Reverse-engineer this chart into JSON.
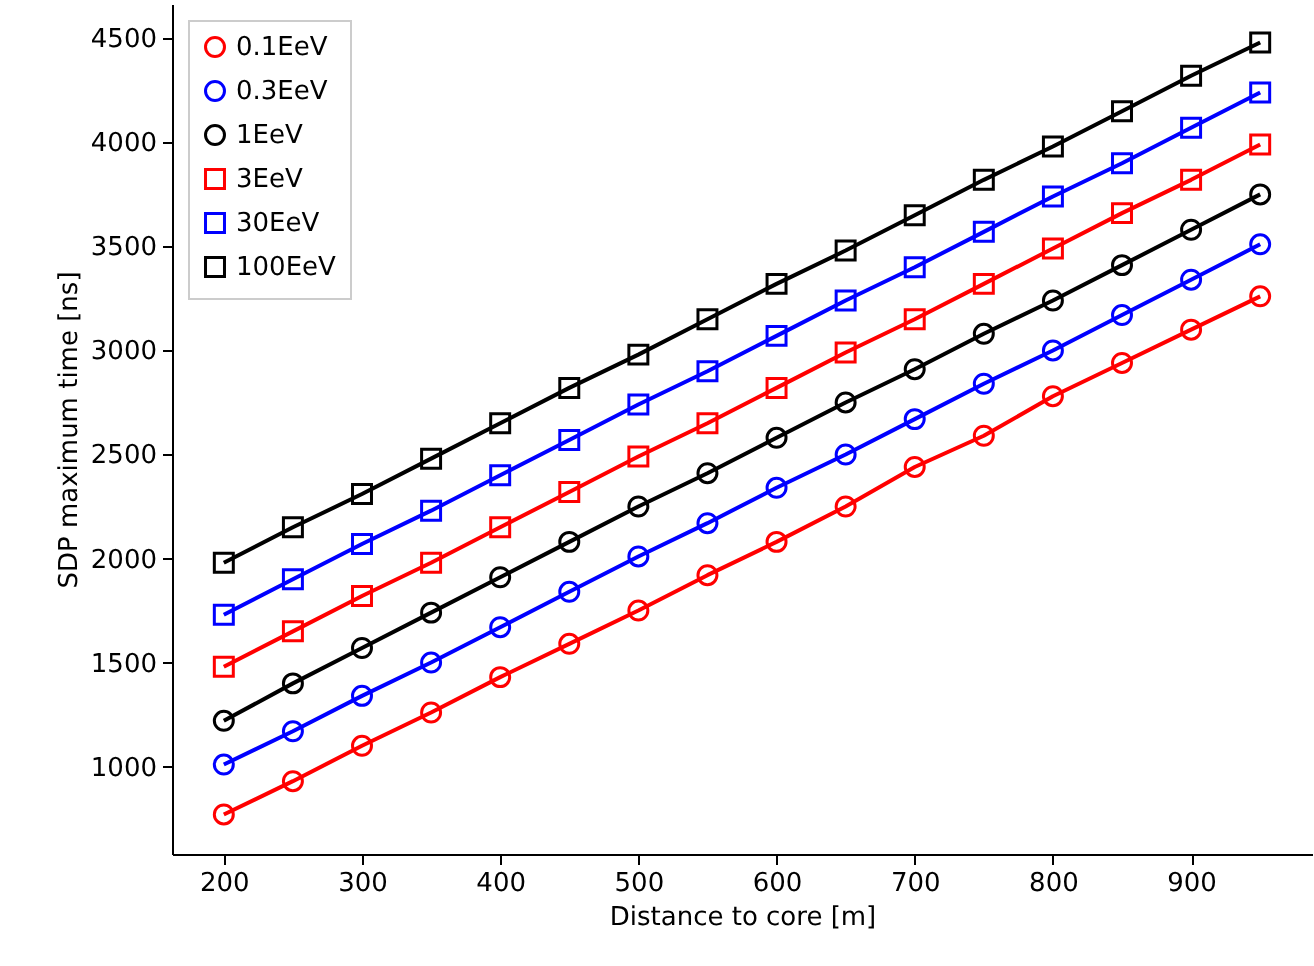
{
  "chart_data": {
    "type": "line",
    "xlabel": "Distance to core [m]",
    "ylabel": "SDP maximum time [ns]",
    "x": [
      200,
      250,
      300,
      350,
      400,
      450,
      500,
      550,
      600,
      650,
      700,
      750,
      800,
      850,
      900,
      950
    ],
    "series": [
      {
        "name": "0.1EeV",
        "color": "#ff0000",
        "marker": "circle",
        "values": [
          770,
          930,
          1100,
          1260,
          1430,
          1590,
          1750,
          1920,
          2080,
          2250,
          2440,
          2590,
          2780,
          2940,
          3100,
          3260
        ]
      },
      {
        "name": "0.3EeV",
        "color": "#0000ff",
        "marker": "circle",
        "values": [
          1010,
          1170,
          1340,
          1500,
          1670,
          1840,
          2010,
          2170,
          2340,
          2500,
          2670,
          2840,
          3000,
          3170,
          3340,
          3510
        ]
      },
      {
        "name": "1EeV",
        "color": "#000000",
        "marker": "circle",
        "values": [
          1220,
          1400,
          1570,
          1740,
          1910,
          2080,
          2250,
          2410,
          2580,
          2750,
          2910,
          3080,
          3240,
          3410,
          3580,
          3750
        ]
      },
      {
        "name": "3EeV",
        "color": "#ff0000",
        "marker": "square",
        "values": [
          1480,
          1650,
          1820,
          1980,
          2150,
          2320,
          2490,
          2650,
          2820,
          2990,
          3150,
          3320,
          3490,
          3660,
          3820,
          3990
        ]
      },
      {
        "name": "30EeV",
        "color": "#0000ff",
        "marker": "square",
        "values": [
          1730,
          1900,
          2070,
          2230,
          2400,
          2570,
          2740,
          2900,
          3070,
          3240,
          3400,
          3570,
          3740,
          3900,
          4070,
          4240
        ]
      },
      {
        "name": "100EeV",
        "color": "#000000",
        "marker": "square",
        "values": [
          1980,
          2150,
          2310,
          2480,
          2650,
          2820,
          2980,
          3150,
          3320,
          3480,
          3650,
          3820,
          3980,
          4150,
          4320,
          4480
        ]
      }
    ],
    "xlim": [
      162.5,
      987.5
    ],
    "xticks": [
      200,
      300,
      400,
      500,
      600,
      700,
      800,
      900
    ],
    "ylim": [
      580,
      4665
    ],
    "yticks": [
      1000,
      1500,
      2000,
      2500,
      3000,
      3500,
      4000,
      4500
    ],
    "grid": false,
    "legend": "top left"
  }
}
